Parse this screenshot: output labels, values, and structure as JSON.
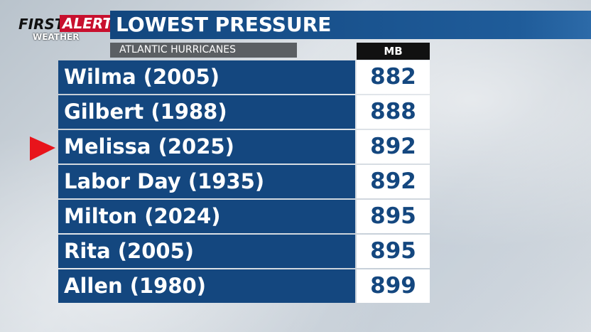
{
  "logo": {
    "first": "FIRST",
    "alert": "ALERT",
    "weather": "WEATHER"
  },
  "header": {
    "title": "LOWEST PRESSURE",
    "subtitle": "ATLANTIC HURRICANES",
    "unit": "MB"
  },
  "table": {
    "rows": [
      [
        "Wilma (2005)",
        882
      ],
      [
        "Gilbert (1988)",
        888
      ],
      [
        "Melissa (2025)",
        892
      ],
      [
        "Labor Day (1935)",
        892
      ],
      [
        "Milton (2024)",
        895
      ],
      [
        "Rita (2005)",
        895
      ],
      [
        "Allen (1980)",
        899
      ]
    ]
  }
}
